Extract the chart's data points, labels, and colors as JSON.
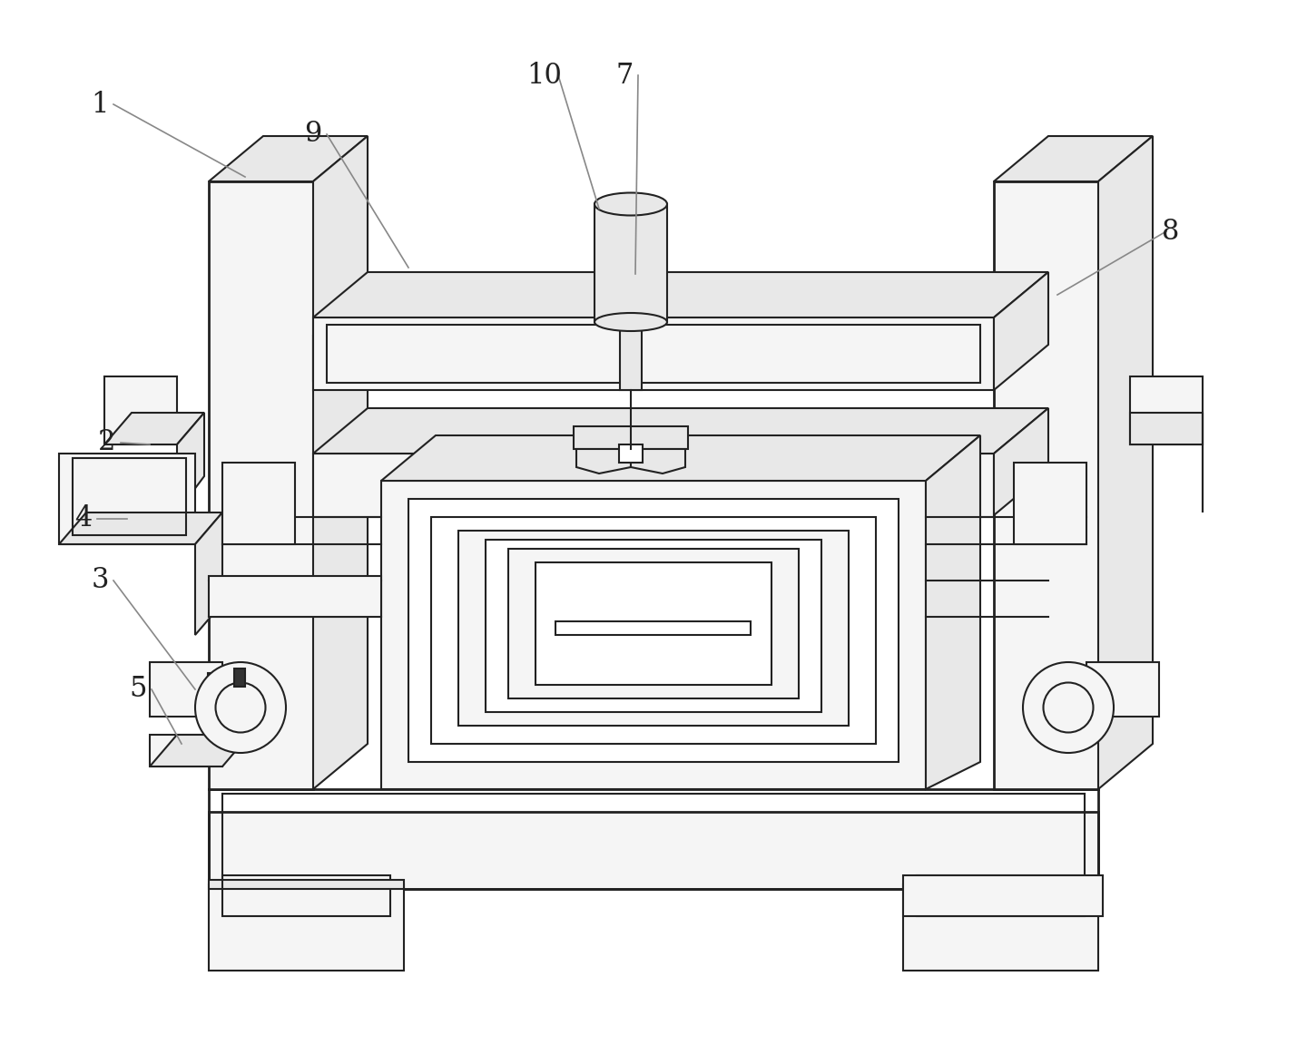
{
  "bg_color": "#ffffff",
  "lc": "#222222",
  "lw": 1.5,
  "tlw": 2.0,
  "gray_fill": "#e8e8e8",
  "light_fill": "#f5f5f5",
  "white_fill": "#ffffff",
  "label_fs": 22,
  "leader_color": "#888888"
}
